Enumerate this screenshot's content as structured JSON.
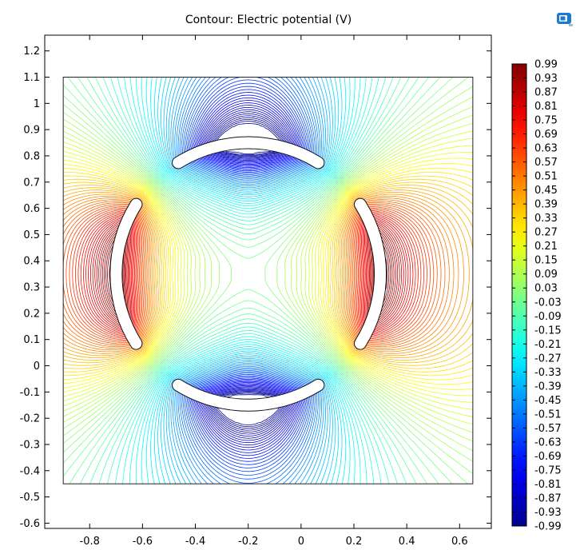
{
  "chart_data": {
    "type": "contour",
    "title": "Contour: Electric potential (V)",
    "xlim": [
      -0.97,
      0.72
    ],
    "ylim": [
      -0.62,
      1.26
    ],
    "x_ticks": [
      "-0.8",
      "-0.6",
      "-0.4",
      "-0.2",
      "0",
      "0.2",
      "0.4",
      "0.6"
    ],
    "x_tick_values": [
      -0.8,
      -0.6,
      -0.4,
      -0.2,
      0,
      0.2,
      0.4,
      0.6
    ],
    "y_ticks": [
      "1.2",
      "1.1",
      "1",
      "0.9",
      "0.8",
      "0.7",
      "0.6",
      "0.5",
      "0.4",
      "0.3",
      "0.2",
      "0.1",
      "0",
      "-0.1",
      "-0.2",
      "-0.3",
      "-0.4",
      "-0.5",
      "-0.6"
    ],
    "y_tick_values": [
      1.2,
      1.1,
      1,
      0.9,
      0.8,
      0.7,
      0.6,
      0.5,
      0.4,
      0.3,
      0.2,
      0.1,
      0,
      -0.1,
      -0.2,
      -0.3,
      -0.4,
      -0.5,
      -0.6
    ],
    "domain_box": {
      "x": [
        -0.9,
        0.65
      ],
      "y": [
        -0.45,
        1.1
      ]
    },
    "center": [
      -0.2,
      0.35
    ],
    "electrode_radius": 0.5,
    "gaps_deg": [
      45,
      135,
      225,
      315
    ],
    "value_range": [
      -0.99,
      0.99
    ],
    "colorbar_labels": [
      "0.99",
      "0.93",
      "0.87",
      "0.81",
      "0.75",
      "0.69",
      "0.63",
      "0.57",
      "0.51",
      "0.45",
      "0.39",
      "0.33",
      "0.27",
      "0.21",
      "0.15",
      "0.09",
      "0.03",
      "-0.03",
      "-0.09",
      "-0.15",
      "-0.21",
      "-0.27",
      "-0.33",
      "-0.39",
      "-0.45",
      "-0.51",
      "-0.57",
      "-0.63",
      "-0.69",
      "-0.75",
      "-0.81",
      "-0.87",
      "-0.93",
      "-0.99"
    ],
    "colorbar_values": [
      0.99,
      0.93,
      0.87,
      0.81,
      0.75,
      0.69,
      0.63,
      0.57,
      0.51,
      0.45,
      0.39,
      0.33,
      0.27,
      0.21,
      0.15,
      0.09,
      0.03,
      -0.03,
      -0.09,
      -0.15,
      -0.21,
      -0.27,
      -0.33,
      -0.39,
      -0.45,
      -0.51,
      -0.57,
      -0.63,
      -0.69,
      -0.75,
      -0.81,
      -0.87,
      -0.93,
      -0.99
    ],
    "colormap": [
      "#00008f",
      "#0000ff",
      "#00ffff",
      "#ffff00",
      "#ff0000",
      "#800000"
    ],
    "grid": false,
    "colorbar_position": "right"
  },
  "colors": {
    "axis": "#000000",
    "domain_border": "#222222",
    "icon_blue": "#1b7bd3"
  }
}
